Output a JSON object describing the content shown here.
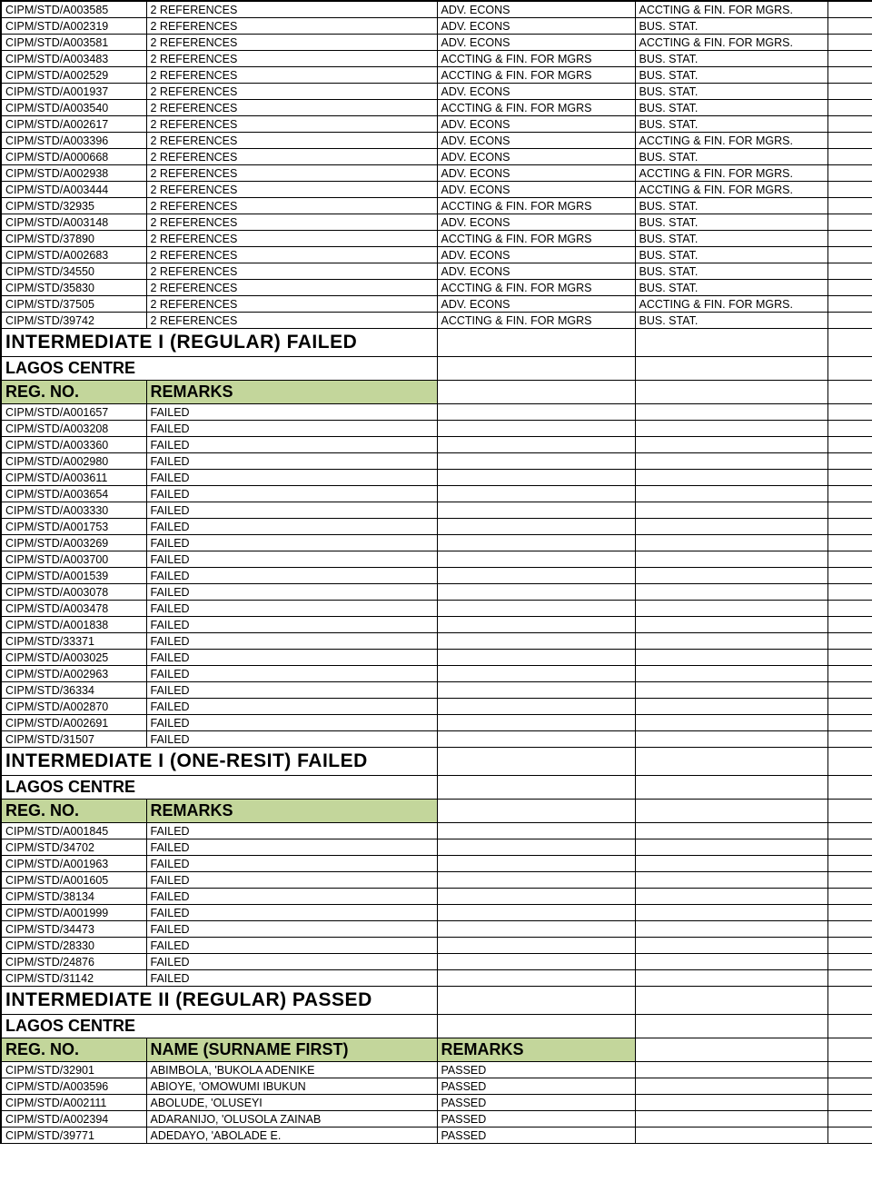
{
  "colors": {
    "header_bg": "#c3d69b",
    "border": "#000000",
    "bg": "#ffffff",
    "text": "#000000"
  },
  "references_table": {
    "rows": [
      {
        "reg": "CIPM/STD/A003585",
        "remarks": "2 REFERENCES",
        "c3": "ADV. ECONS",
        "c4": "ACCTING & FIN. FOR MGRS."
      },
      {
        "reg": "CIPM/STD/A002319",
        "remarks": "2 REFERENCES",
        "c3": "ADV. ECONS",
        "c4": "BUS. STAT."
      },
      {
        "reg": "CIPM/STD/A003581",
        "remarks": "2 REFERENCES",
        "c3": "ADV. ECONS",
        "c4": "ACCTING & FIN. FOR MGRS."
      },
      {
        "reg": "CIPM/STD/A003483",
        "remarks": "2 REFERENCES",
        "c3": "ACCTING & FIN. FOR MGRS",
        "c4": "BUS. STAT."
      },
      {
        "reg": "CIPM/STD/A002529",
        "remarks": "2 REFERENCES",
        "c3": "ACCTING & FIN. FOR MGRS",
        "c4": "BUS. STAT."
      },
      {
        "reg": "CIPM/STD/A001937",
        "remarks": "2 REFERENCES",
        "c3": "ADV. ECONS",
        "c4": "BUS. STAT."
      },
      {
        "reg": "CIPM/STD/A003540",
        "remarks": "2 REFERENCES",
        "c3": "ACCTING & FIN. FOR MGRS",
        "c4": "BUS. STAT."
      },
      {
        "reg": "CIPM/STD/A002617",
        "remarks": "2 REFERENCES",
        "c3": "ADV. ECONS",
        "c4": "BUS. STAT."
      },
      {
        "reg": "CIPM/STD/A003396",
        "remarks": "2 REFERENCES",
        "c3": "ADV. ECONS",
        "c4": "ACCTING & FIN. FOR MGRS."
      },
      {
        "reg": "CIPM/STD/A000668",
        "remarks": "2 REFERENCES",
        "c3": "ADV. ECONS",
        "c4": "BUS. STAT."
      },
      {
        "reg": "CIPM/STD/A002938",
        "remarks": "2 REFERENCES",
        "c3": "ADV. ECONS",
        "c4": "ACCTING & FIN. FOR MGRS."
      },
      {
        "reg": "CIPM/STD/A003444",
        "remarks": "2 REFERENCES",
        "c3": "ADV. ECONS",
        "c4": "ACCTING & FIN. FOR MGRS."
      },
      {
        "reg": "CIPM/STD/32935",
        "remarks": "2 REFERENCES",
        "c3": "ACCTING & FIN. FOR MGRS",
        "c4": "BUS. STAT."
      },
      {
        "reg": "CIPM/STD/A003148",
        "remarks": "2 REFERENCES",
        "c3": "ADV. ECONS",
        "c4": "BUS. STAT."
      },
      {
        "reg": "CIPM/STD/37890",
        "remarks": "2 REFERENCES",
        "c3": "ACCTING & FIN. FOR MGRS",
        "c4": "BUS. STAT."
      },
      {
        "reg": "CIPM/STD/A002683",
        "remarks": "2 REFERENCES",
        "c3": "ADV. ECONS",
        "c4": "BUS. STAT."
      },
      {
        "reg": "CIPM/STD/34550",
        "remarks": "2 REFERENCES",
        "c3": "ADV. ECONS",
        "c4": "BUS. STAT."
      },
      {
        "reg": "CIPM/STD/35830",
        "remarks": "2 REFERENCES",
        "c3": "ACCTING & FIN. FOR MGRS",
        "c4": "BUS. STAT."
      },
      {
        "reg": "CIPM/STD/37505",
        "remarks": "2 REFERENCES",
        "c3": "ADV. ECONS",
        "c4": "ACCTING & FIN. FOR MGRS."
      },
      {
        "reg": "CIPM/STD/39742",
        "remarks": "2 REFERENCES",
        "c3": "ACCTING & FIN. FOR MGRS",
        "c4": "BUS. STAT."
      }
    ]
  },
  "section1": {
    "title": "INTERMEDIATE I  (REGULAR) FAILED",
    "centre": "LAGOS CENTRE",
    "headers": {
      "reg": "REG. NO.",
      "remarks": "REMARKS"
    },
    "rows": [
      {
        "reg": "CIPM/STD/A001657",
        "remarks": "FAILED"
      },
      {
        "reg": "CIPM/STD/A003208",
        "remarks": "FAILED"
      },
      {
        "reg": "CIPM/STD/A003360",
        "remarks": "FAILED"
      },
      {
        "reg": "CIPM/STD/A002980",
        "remarks": "FAILED"
      },
      {
        "reg": "CIPM/STD/A003611",
        "remarks": "FAILED"
      },
      {
        "reg": "CIPM/STD/A003654",
        "remarks": "FAILED"
      },
      {
        "reg": "CIPM/STD/A003330",
        "remarks": "FAILED"
      },
      {
        "reg": "CIPM/STD/A001753",
        "remarks": "FAILED"
      },
      {
        "reg": "CIPM/STD/A003269",
        "remarks": "FAILED"
      },
      {
        "reg": "CIPM/STD/A003700",
        "remarks": "FAILED"
      },
      {
        "reg": "CIPM/STD/A001539",
        "remarks": "FAILED"
      },
      {
        "reg": "CIPM/STD/A003078",
        "remarks": "FAILED"
      },
      {
        "reg": "CIPM/STD/A003478",
        "remarks": "FAILED"
      },
      {
        "reg": "CIPM/STD/A001838",
        "remarks": "FAILED"
      },
      {
        "reg": "CIPM/STD/33371",
        "remarks": "FAILED"
      },
      {
        "reg": "CIPM/STD/A003025",
        "remarks": "FAILED"
      },
      {
        "reg": "CIPM/STD/A002963",
        "remarks": "FAILED"
      },
      {
        "reg": "CIPM/STD/36334",
        "remarks": "FAILED"
      },
      {
        "reg": "CIPM/STD/A002870",
        "remarks": "FAILED"
      },
      {
        "reg": "CIPM/STD/A002691",
        "remarks": "FAILED"
      },
      {
        "reg": "CIPM/STD/31507",
        "remarks": "FAILED"
      }
    ]
  },
  "section2": {
    "title": "INTERMEDIATE I  (ONE-RESIT) FAILED",
    "centre": "LAGOS CENTRE",
    "headers": {
      "reg": "REG. NO.",
      "remarks": "REMARKS"
    },
    "rows": [
      {
        "reg": "CIPM/STD/A001845",
        "remarks": "FAILED"
      },
      {
        "reg": "CIPM/STD/34702",
        "remarks": "FAILED"
      },
      {
        "reg": "CIPM/STD/A001963",
        "remarks": "FAILED"
      },
      {
        "reg": "CIPM/STD/A001605",
        "remarks": "FAILED"
      },
      {
        "reg": "CIPM/STD/38134",
        "remarks": "FAILED"
      },
      {
        "reg": "CIPM/STD/A001999",
        "remarks": "FAILED"
      },
      {
        "reg": "CIPM/STD/34473",
        "remarks": "FAILED"
      },
      {
        "reg": "CIPM/STD/28330",
        "remarks": "FAILED"
      },
      {
        "reg": "CIPM/STD/24876",
        "remarks": "FAILED"
      },
      {
        "reg": "CIPM/STD/31142",
        "remarks": "FAILED"
      }
    ]
  },
  "section3": {
    "title": "INTERMEDIATE II (REGULAR) PASSED",
    "centre": "LAGOS CENTRE",
    "headers": {
      "reg": "REG. NO.",
      "name": "NAME (SURNAME FIRST)",
      "remarks": "REMARKS"
    },
    "rows": [
      {
        "reg": "CIPM/STD/32901",
        "name": "ABIMBOLA, 'BUKOLA ADENIKE",
        "remarks": "PASSED"
      },
      {
        "reg": "CIPM/STD/A003596",
        "name": "ABIOYE, 'OMOWUMI IBUKUN",
        "remarks": "PASSED"
      },
      {
        "reg": "CIPM/STD/A002111",
        "name": "ABOLUDE, 'OLUSEYI",
        "remarks": "PASSED"
      },
      {
        "reg": "CIPM/STD/A002394",
        "name": "ADARANIJO, 'OLUSOLA ZAINAB",
        "remarks": "PASSED"
      },
      {
        "reg": "CIPM/STD/39771",
        "name": "ADEDAYO, 'ABOLADE E.",
        "remarks": "PASSED"
      }
    ]
  }
}
